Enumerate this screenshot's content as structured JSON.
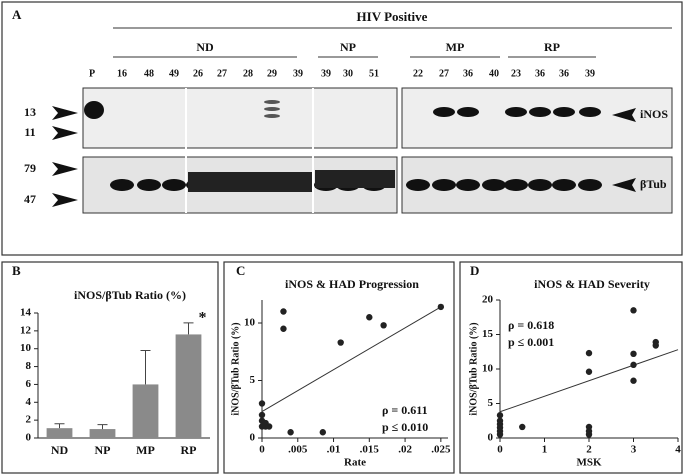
{
  "blot": {
    "panel": "A",
    "group_title": "HIV Positive",
    "groups": [
      "ND",
      "NP",
      "MP",
      "RP"
    ],
    "lanes": [
      "P",
      "16",
      "48",
      "49",
      "26",
      "27",
      "28",
      "29",
      "39",
      "39",
      "30",
      "51",
      "22",
      "27",
      "36",
      "40",
      "23",
      "36",
      "36",
      "39"
    ],
    "markers": [
      "13",
      "11",
      "79",
      "47"
    ],
    "bands": [
      "iNOS",
      "βTub"
    ]
  },
  "chart_data": [
    {
      "type": "bar",
      "panel": "B",
      "title": "iNOS/βTub Ratio (%)",
      "categories": [
        "ND",
        "NP",
        "MP",
        "RP"
      ],
      "values": [
        1.1,
        1.0,
        6.0,
        11.6
      ],
      "errors": [
        0.5,
        0.5,
        3.8,
        1.3
      ],
      "color": "#8a8a8a",
      "ylim": [
        0,
        14
      ],
      "yticks": [
        0,
        2,
        4,
        6,
        8,
        10,
        12,
        14
      ],
      "annotation": "*"
    },
    {
      "type": "scatter",
      "panel": "C",
      "title": "iNOS & HAD Progression",
      "ylabel": "iNOS/βTub Ratio (%)",
      "xlabel": "Rate",
      "x": [
        0,
        0,
        0,
        0,
        0.0005,
        0.0005,
        0.001,
        0.003,
        0.003,
        0.004,
        0.0085,
        0.011,
        0.015,
        0.017,
        0.025
      ],
      "values": [
        3,
        2,
        1.5,
        1,
        1,
        1.3,
        1,
        11,
        9.5,
        0.5,
        0.5,
        8.3,
        10.5,
        9.8,
        11.4
      ],
      "trendline": {
        "x": [
          0,
          0.025
        ],
        "values": [
          2.3,
          11.4
        ]
      },
      "annotations": [
        "ρ = 0.611",
        "p ≤ 0.010"
      ],
      "xlim": [
        0,
        0.026
      ],
      "ylim": [
        0,
        12
      ],
      "xticks": [
        0,
        {
          "value": 0.005,
          "label": ".005"
        },
        {
          "value": 0.01,
          "label": ".01"
        },
        {
          "value": 0.015,
          "label": ".015"
        },
        {
          "value": 0.02,
          "label": ".02"
        },
        {
          "value": 0.025,
          "label": ".025"
        }
      ],
      "yticks": [
        0,
        5,
        10
      ],
      "color": "#222"
    },
    {
      "type": "scatter",
      "panel": "D",
      "title": "iNOS & HAD Severity",
      "ylabel": "iNOS/βTub Ratio (%)",
      "xlabel": "MSK",
      "x": [
        0,
        0,
        0,
        0,
        0,
        0,
        0.5,
        2,
        2,
        2,
        2,
        2,
        3,
        3,
        3,
        3,
        3.5,
        3.5
      ],
      "values": [
        0.5,
        1,
        1.5,
        2,
        2.5,
        3.3,
        1.6,
        12.3,
        9.6,
        1.6,
        1,
        0.5,
        18.5,
        12.2,
        10.6,
        8.3,
        13.9,
        13.4
      ],
      "trendline": {
        "x": [
          0,
          4
        ],
        "values": [
          3.8,
          12.8
        ]
      },
      "annotations": [
        "ρ = 0.618",
        "p ≤ 0.001"
      ],
      "xlim": [
        0,
        4
      ],
      "ylim": [
        0,
        20
      ],
      "xticks": [
        0,
        1,
        2,
        3,
        4
      ],
      "yticks": [
        0,
        5,
        10,
        15,
        20
      ],
      "color": "#222"
    }
  ]
}
